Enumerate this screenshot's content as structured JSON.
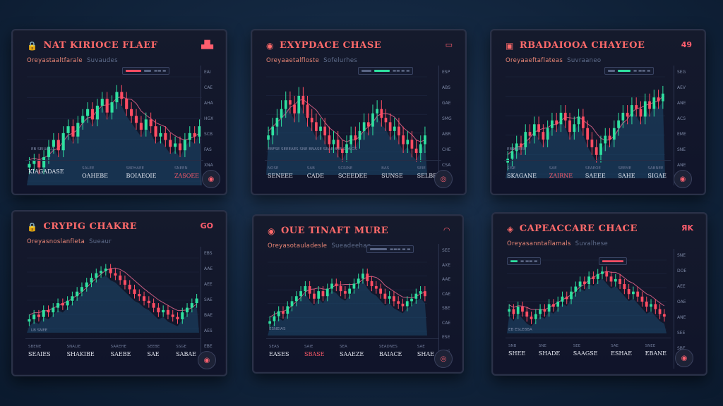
{
  "colors": {
    "up": "#2fe0a0",
    "down": "#ff4d63",
    "ma": "#c35a7e",
    "area": "#1d4a6e",
    "grid": "#1e2741",
    "bg": "#10142a"
  },
  "panels": [
    {
      "id": "p1",
      "title": "NAT KIRIOCE FLAEF",
      "title_icon": "lock-icon",
      "corner": "▟▙",
      "sub": "Oreyastaaltfarale",
      "sub_dim": "Suvaudes",
      "pill": "▬▬ ▬",
      "axis_labels": [
        "EAI",
        "CAE",
        "AHA",
        "HGX",
        "SCB",
        "FAS",
        "XNA",
        "SB"
      ],
      "x_label": "EB SEIUALO",
      "stats": [
        {
          "lbl": "",
          "val": "KIAGADASE",
          "red": false
        },
        {
          "lbl": "SALEE",
          "val": "OAHEBE",
          "red": false
        },
        {
          "lbl": "SBPHAEE",
          "val": "BOIAEOIE",
          "red": false
        },
        {
          "lbl": "SNEEN",
          "val": "ZASOEE",
          "red": true
        }
      ],
      "badge": "◉",
      "chart_data": {
        "type": "candlestick",
        "values": [
          20,
          22,
          18,
          24,
          30,
          34,
          28,
          38,
          42,
          36,
          44,
          48,
          52,
          46,
          54,
          58,
          50,
          56,
          62,
          58,
          52,
          48,
          44,
          40,
          46,
          42,
          36,
          38,
          34,
          30,
          32,
          28,
          34,
          38,
          36,
          42
        ]
      }
    },
    {
      "id": "p2",
      "title": "EXYPDACE CHASE",
      "title_icon": "pin-icon",
      "corner": "▭",
      "sub": "Oreyaaetalfloste",
      "sub_dim": "Sofelurhes",
      "pill": "▬▬ ▬ ▬",
      "axis_labels": [
        "ESP",
        "ABS",
        "GAE",
        "SMG",
        "ABR",
        "CHE",
        "CSA",
        "SNE"
      ],
      "x_label": "EBFSE SEEEAES SNE  BNASE SEAE  BSE SONGS",
      "stats": [
        {
          "lbl": "NOSE",
          "val": "SENEEE",
          "red": false
        },
        {
          "lbl": "SAB",
          "val": "CADE",
          "red": false
        },
        {
          "lbl": "SCRINE",
          "val": "SCEEDEE",
          "red": false
        },
        {
          "lbl": "BAS",
          "val": "SUNSE",
          "red": false
        },
        {
          "lbl": "SEIE",
          "val": "SELBE",
          "red": false
        }
      ],
      "badge": "◎",
      "chart_data": {
        "type": "candlestick",
        "values": [
          38,
          42,
          46,
          50,
          54,
          52,
          48,
          56,
          52,
          46,
          44,
          40,
          42,
          38,
          34,
          36,
          32,
          30,
          34,
          38,
          36,
          40,
          44,
          42,
          48,
          50,
          46,
          44,
          40,
          42,
          38,
          34,
          36,
          32,
          30,
          34,
          38
        ]
      }
    },
    {
      "id": "p3",
      "title": "RBADAIOOA CHAYEOE",
      "title_icon": "wallet-icon",
      "corner": "49",
      "sub": "Oreyaaeftaflateas",
      "sub_dim": "Suvraaneo",
      "pill": "▬ ▬▬ ▬",
      "axis_labels": [
        "SEG",
        "AEV",
        "ANE",
        "ACS",
        "EME",
        "SNE",
        "ANE",
        "EAE"
      ],
      "x_label": "EBEIBEE8",
      "stats": [
        {
          "lbl": "SISE",
          "val": "SKAGANE",
          "red": false
        },
        {
          "lbl": "SAE",
          "val": "ZAIRNE",
          "red": true
        },
        {
          "lbl": "SEAEOE",
          "val": "SAEEE",
          "red": false
        },
        {
          "lbl": "SEEME",
          "val": "SAHE",
          "red": false
        },
        {
          "lbl": "SABNEE",
          "val": "SIGAE",
          "red": false
        }
      ],
      "badge": "◉",
      "chart_data": {
        "type": "candlestick",
        "values": [
          26,
          30,
          34,
          32,
          40,
          38,
          44,
          40,
          36,
          42,
          46,
          44,
          50,
          46,
          40,
          44,
          48,
          42,
          36,
          32,
          28,
          34,
          38,
          36,
          42,
          46,
          50,
          48,
          54,
          52,
          48,
          56,
          52,
          58,
          56,
          60
        ]
      }
    },
    {
      "id": "p4",
      "title": "CRYPIG CHAKRE",
      "title_icon": "lock-icon",
      "corner": "GO",
      "sub": "Oreyasnoslanfleta",
      "sub_dim": "Sueaur",
      "pill": "",
      "axis_labels": [
        "EBS",
        "AAE",
        "AEE",
        "SAE",
        "BAE",
        "AES",
        "EBE",
        "SAB"
      ],
      "x_label": "LB SNEE",
      "stats": [
        {
          "lbl": "SBENE",
          "val": "SEAIES",
          "red": false
        },
        {
          "lbl": "SNALIE",
          "val": "SHAKIBE",
          "red": false
        },
        {
          "lbl": "SAREHE",
          "val": "SAEBE",
          "red": false
        },
        {
          "lbl": "SEEBE",
          "val": "SAE",
          "red": false
        },
        {
          "lbl": "SSGE",
          "val": "SABAE",
          "red": false
        }
      ],
      "badge": "◉",
      "chart_data": {
        "type": "candlestick",
        "values": [
          20,
          24,
          22,
          28,
          26,
          30,
          34,
          32,
          36,
          40,
          44,
          48,
          52,
          56,
          60,
          62,
          64,
          60,
          58,
          54,
          50,
          46,
          42,
          40,
          36,
          34,
          30,
          26,
          28,
          24,
          22,
          20,
          26,
          30,
          34,
          38
        ]
      }
    },
    {
      "id": "p5",
      "title": "OUE TINAFT MURE",
      "title_icon": "pin-icon",
      "corner": "◠",
      "sub": "Oreyasotauladesle",
      "sub_dim": "Sueadeehae",
      "pill": "▬▬▬ ▬ ▬",
      "axis_labels": [
        "SEE",
        "AXE",
        "AAE",
        "CAE",
        "SBE",
        "CAE",
        "ESE",
        "SSE"
      ],
      "x_label": "ESNEIAS",
      "stats": [
        {
          "lbl": "SEAS",
          "val": "EASES",
          "red": false
        },
        {
          "lbl": "SAIE",
          "val": "SBASE",
          "red": true
        },
        {
          "lbl": "SEA",
          "val": "SAAEZE",
          "red": false
        },
        {
          "lbl": "SEADNES",
          "val": "BAIACE",
          "red": false
        },
        {
          "lbl": "SAE",
          "val": "SHAE",
          "red": false
        }
      ],
      "badge": "◎",
      "chart_data": {
        "type": "candlestick",
        "values": [
          18,
          22,
          26,
          24,
          30,
          34,
          38,
          42,
          46,
          40,
          36,
          42,
          38,
          44,
          48,
          46,
          42,
          40,
          44,
          48,
          52,
          56,
          50,
          46,
          44,
          40,
          36,
          38,
          34,
          32,
          30,
          34,
          36,
          40,
          42,
          38
        ]
      }
    },
    {
      "id": "p6",
      "title": "CAPEACCARE CHACE",
      "title_icon": "wallet-icon",
      "corner": "ЯK",
      "sub": "Oreyasanntaflamals",
      "sub_dim": "Suvalhese",
      "pill": "▬ ▬▬ ▬",
      "axis_labels": [
        "SNE",
        "DOE",
        "AEE",
        "OAE",
        "ANE",
        "SEE",
        "SBE",
        "SNB"
      ],
      "x_label": "EB ESLEBBA",
      "stats": [
        {
          "lbl": "SNB",
          "val": "SHEE",
          "red": false
        },
        {
          "lbl": "SNE",
          "val": "SHADE",
          "red": false
        },
        {
          "lbl": "SEE",
          "val": "SAAGSE",
          "red": false
        },
        {
          "lbl": "SAE",
          "val": "ESHAE",
          "red": false
        },
        {
          "lbl": "SNEE",
          "val": "EBANE",
          "red": false
        }
      ],
      "badge": "◉",
      "chart_data": {
        "type": "candlestick",
        "values": [
          34,
          30,
          36,
          32,
          28,
          26,
          30,
          34,
          32,
          38,
          36,
          40,
          44,
          42,
          48,
          52,
          56,
          54,
          60,
          58,
          62,
          64,
          60,
          56,
          58,
          54,
          50,
          46,
          48,
          44,
          40,
          36,
          38,
          34,
          30,
          28
        ]
      }
    }
  ]
}
